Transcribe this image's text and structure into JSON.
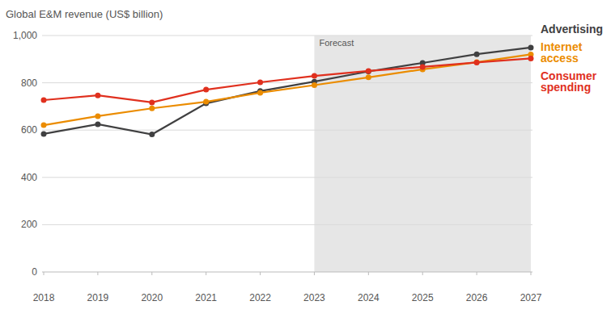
{
  "chart_data": {
    "type": "line",
    "title": "Global E&M revenue (US$ billion)",
    "x": [
      2018,
      2019,
      2020,
      2021,
      2022,
      2023,
      2024,
      2025,
      2026,
      2027
    ],
    "xlim": [
      2018,
      2027
    ],
    "xticks": [
      2018,
      2019,
      2020,
      2021,
      2022,
      2023,
      2024,
      2025,
      2026,
      2027
    ],
    "ylim": [
      0,
      1000
    ],
    "yticks": [
      0,
      200,
      400,
      600,
      800,
      {
        "value": 1000,
        "label": "1,000"
      }
    ],
    "grid": true,
    "legend": "right",
    "marker": "circle",
    "forecast": {
      "label": "Forecast",
      "from": 2023,
      "to": 2027
    },
    "series": [
      {
        "name": "Advertising",
        "color": "#404041",
        "values": [
          584,
          625,
          582,
          713,
          765,
          805,
          848,
          884,
          921,
          949
        ]
      },
      {
        "name": "Internet access",
        "color": "#eb8c00",
        "values": [
          621,
          659,
          692,
          720,
          758,
          790,
          823,
          857,
          887,
          920
        ]
      },
      {
        "name": "Consumer spending",
        "color": "#e0301e",
        "values": [
          727,
          747,
          717,
          771,
          802,
          829,
          850,
          867,
          886,
          903
        ]
      }
    ]
  }
}
